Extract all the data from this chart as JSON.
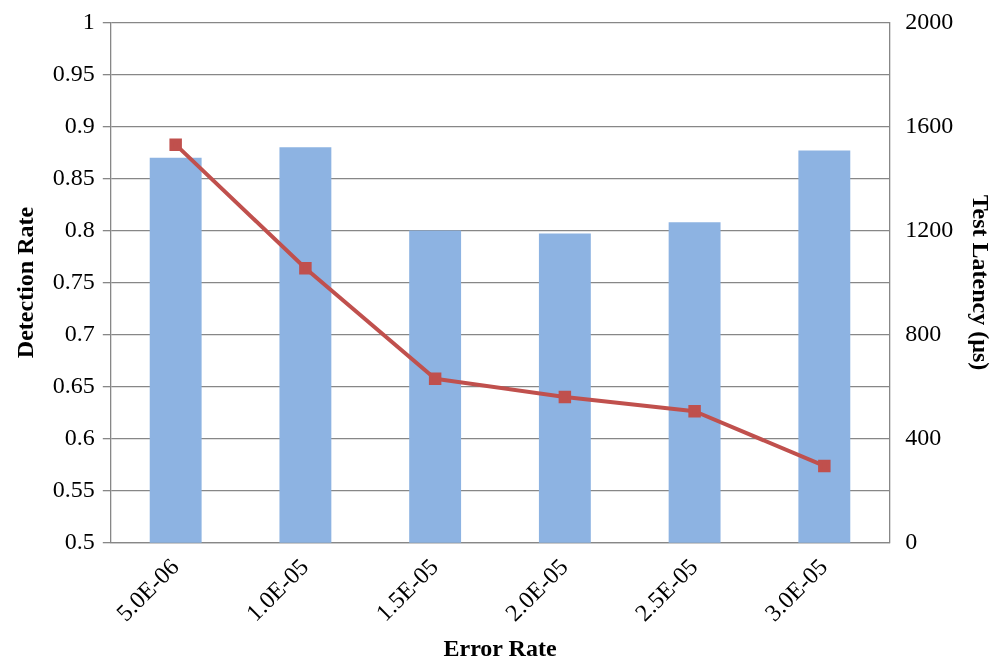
{
  "chart_data": {
    "type": "bar",
    "xlabel": "Error Rate",
    "ylabel": "Detection Rate",
    "y2label": "Test Latency (µs)",
    "categories": [
      "5.0E-06",
      "1.0E-05",
      "1.5E-05",
      "2.0E-05",
      "2.5E-05",
      "3.0E-05"
    ],
    "series": [
      {
        "color": "#8db3e2",
        "values": [
          0.87,
          0.88,
          0.8,
          0.797,
          0.808,
          0.877
        ]
      },
      {
        "type": "line",
        "axis": "y2",
        "color": "#c0504d",
        "marker": "square",
        "values": [
          1530,
          1055,
          630,
          560,
          505,
          295
        ]
      }
    ],
    "ylim": [
      0.5,
      1
    ],
    "yticks": [
      0.5,
      0.55,
      0.6,
      0.65,
      0.7,
      0.75,
      0.8,
      0.85,
      0.9,
      0.95,
      1
    ],
    "y2lim": [
      0,
      2000
    ],
    "y2ticks": [
      0,
      400,
      800,
      1200,
      1600,
      2000
    ],
    "grid": "y",
    "legend": false
  }
}
